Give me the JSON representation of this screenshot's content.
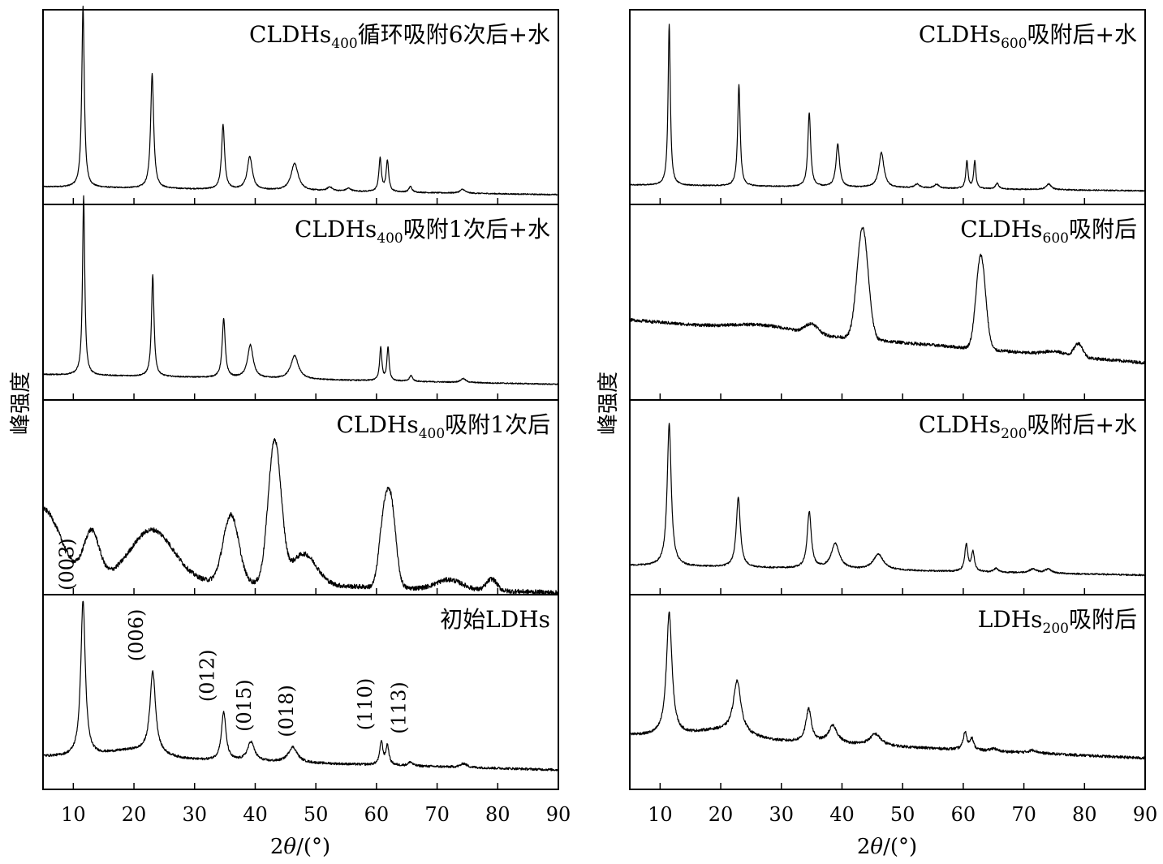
{
  "chart_data": {
    "type": "line",
    "x_axis": {
      "label": "2θ/(°)",
      "range": [
        5,
        90
      ],
      "ticks": [
        10,
        20,
        30,
        40,
        50,
        60,
        70,
        80,
        90
      ],
      "tick_labels": [
        "10",
        "20",
        "30",
        "40",
        "50",
        "60",
        "70",
        "80",
        "90"
      ]
    },
    "ylabel": "峰强度",
    "grid": false,
    "columns": [
      {
        "ylabel": "峰强度",
        "xlabel": "2θ/(°)",
        "panels": [
          {
            "label_main": "CLDHs",
            "label_sub": "400",
            "label_rest": "循环吸附6次后+水",
            "baseline": [
              0.09,
              0.05
            ],
            "broad": [],
            "peaks": [
              [
                11.6,
                0.93,
                0.25
              ],
              [
                23.0,
                0.59,
                0.3
              ],
              [
                34.7,
                0.33,
                0.3
              ],
              [
                39.1,
                0.17,
                0.5
              ],
              [
                46.5,
                0.14,
                0.7
              ],
              [
                60.6,
                0.17,
                0.25
              ],
              [
                61.8,
                0.16,
                0.25
              ],
              [
                65.6,
                0.03,
                0.3
              ],
              [
                74.2,
                0.02,
                0.5
              ],
              [
                52.3,
                0.02,
                0.5
              ],
              [
                55.4,
                0.015,
                0.5
              ]
            ],
            "noise": 0.003
          },
          {
            "label_main": "CLDHs",
            "label_sub": "400",
            "label_rest": "吸附1次后+水",
            "baseline": [
              0.13,
              0.08
            ],
            "broad": [],
            "peaks": [
              [
                11.7,
                0.92,
                0.22
              ],
              [
                23.1,
                0.52,
                0.25
              ],
              [
                34.8,
                0.3,
                0.3
              ],
              [
                39.2,
                0.17,
                0.55
              ],
              [
                46.5,
                0.12,
                0.75
              ],
              [
                60.7,
                0.17,
                0.22
              ],
              [
                61.9,
                0.17,
                0.22
              ],
              [
                65.7,
                0.03,
                0.3
              ],
              [
                74.3,
                0.02,
                0.5
              ]
            ],
            "noise": 0.003
          },
          {
            "label_main": "CLDHs",
            "label_sub": "400",
            "label_rest": "吸附1次后",
            "baseline": [
              0.09,
              0.01
            ],
            "broad": [
              [
                5,
                0.35,
                4
              ],
              [
                13,
                0.24,
                1.8
              ],
              [
                23,
                0.26,
                5
              ],
              [
                36,
                0.35,
                1.8
              ],
              [
                43.2,
                0.73,
                1.5
              ],
              [
                48,
                0.16,
                3
              ],
              [
                61,
                0.24,
                1
              ],
              [
                62.3,
                0.45,
                1.2
              ],
              [
                72,
                0.05,
                3
              ],
              [
                79,
                0.06,
                1.2
              ]
            ],
            "peaks": [],
            "noise": 0.012
          },
          {
            "label_main": "初始LDHs",
            "label_sub": "",
            "label_rest": "",
            "baseline": [
              0.17,
              0.1
            ],
            "broad": [
              [
                20,
                0.04,
                6
              ]
            ],
            "peaks": [
              [
                11.6,
                0.8,
                0.45
              ],
              [
                23.1,
                0.42,
                0.55
              ],
              [
                34.8,
                0.25,
                0.45
              ],
              [
                39.3,
                0.1,
                0.7
              ],
              [
                46.2,
                0.08,
                0.9
              ],
              [
                60.8,
                0.12,
                0.3
              ],
              [
                61.8,
                0.1,
                0.3
              ],
              [
                65.6,
                0.02,
                0.4
              ],
              [
                74.4,
                0.02,
                0.6
              ]
            ],
            "noise": 0.006,
            "annotations": [
              "(003)",
              "(006)",
              "(012)",
              "(015)",
              "(018)",
              "(110)",
              "(113)"
            ]
          }
        ]
      },
      {
        "ylabel": "峰强度",
        "xlabel": "2θ/(°)",
        "panels": [
          {
            "label_main": "CLDHs",
            "label_sub": "600",
            "label_rest": "吸附后+水",
            "baseline": [
              0.1,
              0.07
            ],
            "broad": [],
            "peaks": [
              [
                11.5,
                0.83,
                0.22
              ],
              [
                23.0,
                0.52,
                0.25
              ],
              [
                34.6,
                0.38,
                0.28
              ],
              [
                39.3,
                0.22,
                0.35
              ],
              [
                46.5,
                0.18,
                0.5
              ],
              [
                60.6,
                0.14,
                0.22
              ],
              [
                61.9,
                0.14,
                0.22
              ],
              [
                65.6,
                0.03,
                0.3
              ],
              [
                74.1,
                0.03,
                0.5
              ],
              [
                52.4,
                0.02,
                0.5
              ],
              [
                55.6,
                0.02,
                0.5
              ]
            ],
            "noise": 0.003
          },
          {
            "label_main": "CLDHs",
            "label_sub": "600",
            "label_rest": "吸附后",
            "baseline": [
              0.41,
              0.19
            ],
            "broad": [
              [
                27,
                0.03,
                7
              ],
              [
                35,
                0.05,
                1.5
              ],
              [
                43.4,
                0.57,
                1.3
              ],
              [
                62.9,
                0.48,
                1.1
              ],
              [
                75,
                0.02,
                2.5
              ],
              [
                79,
                0.07,
                1
              ]
            ],
            "peaks": [],
            "noise": 0.008
          },
          {
            "label_main": "CLDHs",
            "label_sub": "200",
            "label_rest": "吸附后+水",
            "baseline": [
              0.15,
              0.1
            ],
            "broad": [],
            "peaks": [
              [
                11.5,
                0.73,
                0.4
              ],
              [
                22.9,
                0.36,
                0.4
              ],
              [
                34.6,
                0.29,
                0.4
              ],
              [
                38.9,
                0.13,
                0.8
              ],
              [
                46.0,
                0.08,
                1.0
              ],
              [
                60.5,
                0.14,
                0.3
              ],
              [
                61.6,
                0.1,
                0.3
              ],
              [
                65.4,
                0.02,
                0.4
              ],
              [
                71.5,
                0.02,
                0.7
              ],
              [
                74.0,
                0.02,
                0.7
              ]
            ],
            "noise": 0.004
          },
          {
            "label_main": "LDHs",
            "label_sub": "200",
            "label_rest": "吸附后",
            "baseline": [
              0.28,
              0.16
            ],
            "broad": [
              [
                20,
                0.04,
                6
              ]
            ],
            "peaks": [
              [
                11.5,
                0.63,
                0.55
              ],
              [
                22.7,
                0.27,
                0.75
              ],
              [
                34.5,
                0.17,
                0.55
              ],
              [
                38.5,
                0.09,
                0.9
              ],
              [
                45.5,
                0.06,
                1.1
              ],
              [
                60.3,
                0.09,
                0.35
              ],
              [
                61.4,
                0.06,
                0.35
              ],
              [
                65.0,
                0.015,
                0.5
              ],
              [
                71.5,
                0.015,
                0.8
              ]
            ],
            "noise": 0.007
          }
        ]
      }
    ]
  }
}
